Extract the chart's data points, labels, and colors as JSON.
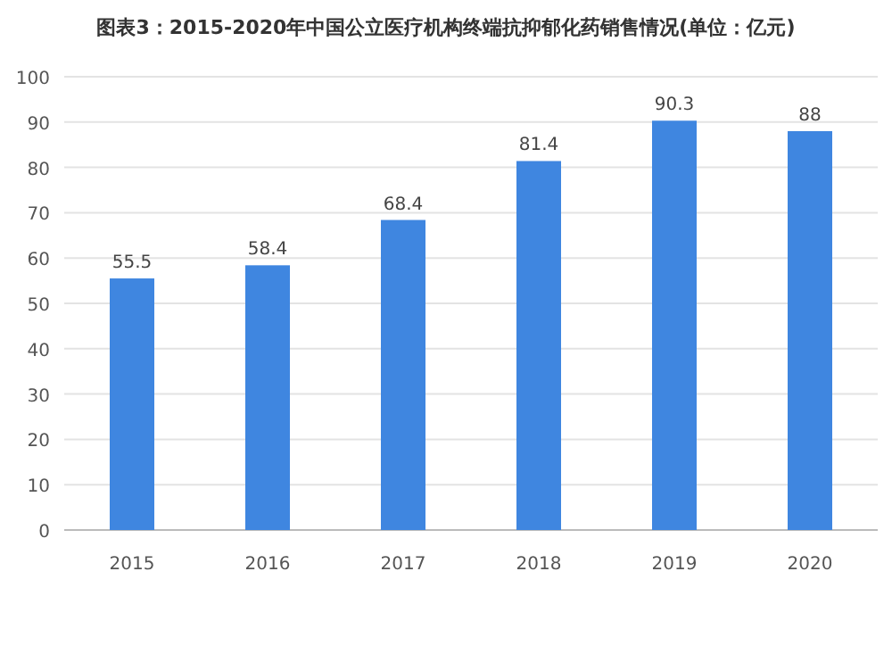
{
  "chart_data": {
    "type": "bar",
    "title": "图表3：2015-2020年中国公立医疗机构终端抗抑郁化药销售情况(单位：亿元)",
    "categories": [
      "2015",
      "2016",
      "2017",
      "2018",
      "2019",
      "2020"
    ],
    "values": [
      55.5,
      58.4,
      68.4,
      81.4,
      90.3,
      88
    ],
    "color": "#3f86e0",
    "ylim": [
      0,
      100
    ],
    "yticks": [
      0,
      10,
      20,
      30,
      40,
      50,
      60,
      70,
      80,
      90,
      100
    ],
    "grid": "y",
    "data_labels": true
  }
}
